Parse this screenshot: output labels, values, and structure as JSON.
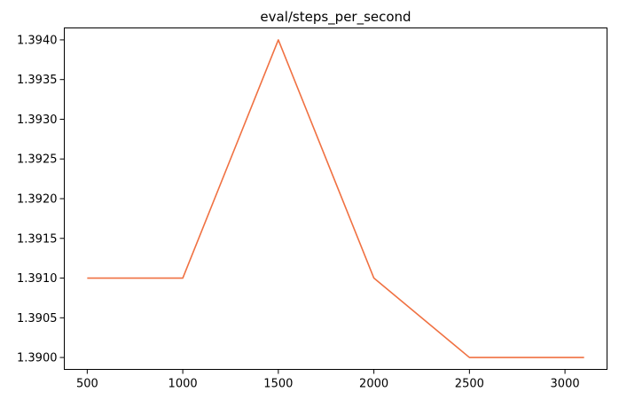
{
  "chart_data": {
    "type": "line",
    "title": "eval/steps_per_second",
    "xlabel": "",
    "ylabel": "",
    "x": [
      500,
      1000,
      1500,
      2000,
      2500,
      3100
    ],
    "series": [
      {
        "values": [
          1.391,
          1.391,
          1.394,
          1.391,
          1.39,
          1.39
        ],
        "color": "#f07142"
      }
    ],
    "xlim": [
      380,
      3220
    ],
    "ylim": [
      1.38985,
      1.39415
    ],
    "xticks": [
      500,
      1000,
      1500,
      2000,
      2500,
      3000
    ],
    "xtick_labels": [
      "500",
      "1000",
      "1500",
      "2000",
      "2500",
      "3000"
    ],
    "yticks": [
      1.39,
      1.3905,
      1.391,
      1.3915,
      1.392,
      1.3925,
      1.393,
      1.3935,
      1.394
    ],
    "ytick_labels": [
      "1.3900",
      "1.3905",
      "1.3910",
      "1.3915",
      "1.3920",
      "1.3925",
      "1.3930",
      "1.3935",
      "1.3940"
    ],
    "grid": false,
    "legend": "none"
  }
}
